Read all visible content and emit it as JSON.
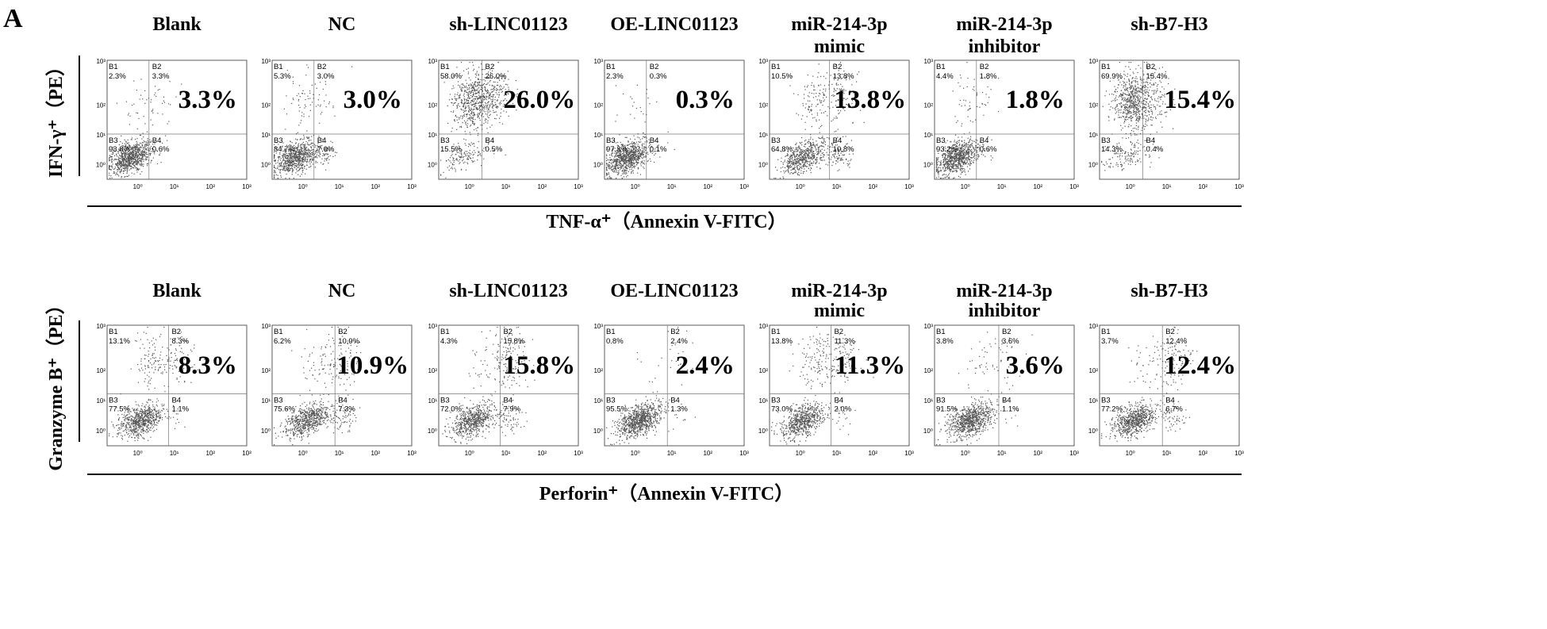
{
  "panel_label": "A",
  "chart_data": [
    {
      "type": "scatter",
      "row_index": 0,
      "y_axis_title": "IFN-γ⁺（PE）",
      "x_axis_title": "TNF-α⁺（Annexin V-FITC）",
      "x_tick_labels": [
        "10⁰",
        "10¹",
        "10²",
        "10³"
      ],
      "y_tick_labels": [
        "10⁰",
        "10¹",
        "10²",
        "10³"
      ],
      "panels": [
        {
          "title": [
            "Blank"
          ],
          "highlight": "3.3%",
          "B1": "2.3%",
          "B2": "3.3%",
          "B3": "93.8%",
          "B4": "0.6%"
        },
        {
          "title": [
            "NC"
          ],
          "highlight": "3.0%",
          "B1": "5.3%",
          "B2": "3.0%",
          "B3": "84.7%",
          "B4": "7.0%"
        },
        {
          "title": [
            "sh-LINC01123"
          ],
          "highlight": "26.0%",
          "B1": "58.0%",
          "B2": "26.0%",
          "B3": "15.5%",
          "B4": "0.5%"
        },
        {
          "title": [
            "OE-LINC01123"
          ],
          "highlight": "0.3%",
          "B1": "2.3%",
          "B2": "0.3%",
          "B3": "97.3%",
          "B4": "0.1%"
        },
        {
          "title": [
            "miR-214-3p",
            "mimic"
          ],
          "highlight": "13.8%",
          "B1": "10.5%",
          "B2": "13.8%",
          "B3": "64.8%",
          "B4": "10.8%"
        },
        {
          "title": [
            "miR-214-3p",
            "inhibitor"
          ],
          "highlight": "1.8%",
          "B1": "4.4%",
          "B2": "1.8%",
          "B3": "93.2%",
          "B4": "0.6%"
        },
        {
          "title": [
            "sh-B7-H3"
          ],
          "highlight": "15.4%",
          "B1": "69.9%",
          "B2": "15.4%",
          "B3": "14.3%",
          "B4": "0.4%"
        }
      ]
    },
    {
      "type": "scatter",
      "row_index": 1,
      "y_axis_title": "Granzyme B⁺（PE）",
      "x_axis_title": "Perforin⁺（Annexin V-FITC）",
      "x_tick_labels": [
        "10⁰",
        "10¹",
        "10²",
        "10³"
      ],
      "y_tick_labels": [
        "10⁰",
        "10¹",
        "10²",
        "10³"
      ],
      "panels": [
        {
          "title": [
            "Blank"
          ],
          "highlight": "8.3%",
          "B1": "13.1%",
          "B2": "8.3%",
          "B3": "77.5%",
          "B4": "1.1%"
        },
        {
          "title": [
            "NC"
          ],
          "highlight": "10.9%",
          "B1": "6.2%",
          "B2": "10.9%",
          "B3": "75.6%",
          "B4": "7.3%"
        },
        {
          "title": [
            "sh-LINC01123"
          ],
          "highlight": "15.8%",
          "B1": "4.3%",
          "B2": "15.8%",
          "B3": "72.0%",
          "B4": "7.9%"
        },
        {
          "title": [
            "OE-LINC01123"
          ],
          "highlight": "2.4%",
          "B1": "0.8%",
          "B2": "2.4%",
          "B3": "95.5%",
          "B4": "1.3%"
        },
        {
          "title": [
            "miR-214-3p",
            "mimic"
          ],
          "highlight": "11.3%",
          "B1": "13.8%",
          "B2": "11.3%",
          "B3": "73.0%",
          "B4": "2.0%"
        },
        {
          "title": [
            "miR-214-3p",
            "inhibitor"
          ],
          "highlight": "3.6%",
          "B1": "3.8%",
          "B2": "3.6%",
          "B3": "91.5%",
          "B4": "1.1%"
        },
        {
          "title": [
            "sh-B7-H3"
          ],
          "highlight": "12.4%",
          "B1": "3.7%",
          "B2": "12.4%",
          "B3": "77.2%",
          "B4": "6.7%"
        }
      ]
    }
  ],
  "colors": {
    "dots": "#555555",
    "lines": "#000000"
  }
}
